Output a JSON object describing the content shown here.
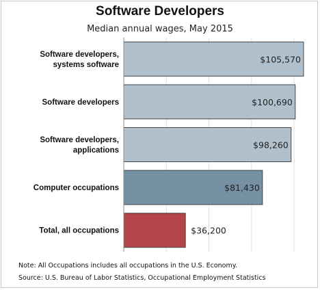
{
  "chart_data": {
    "type": "bar",
    "orientation": "horizontal",
    "title": "Software Developers",
    "subtitle": "Median annual wages, May 2015",
    "categories": [
      [
        "Software developers,",
        "systems software"
      ],
      [
        "Software developers"
      ],
      [
        "Software developers,",
        "applications"
      ],
      [
        "Computer occupations"
      ],
      [
        "Total, all occupations"
      ]
    ],
    "values": [
      105570,
      100690,
      98260,
      81430,
      36200
    ],
    "value_labels": [
      "$105,570",
      "$100,690",
      "$98,260",
      "$81,430",
      "$36,200"
    ],
    "bar_colors": [
      "#b0c1cd",
      "#b0c1cd",
      "#b0c1cd",
      "#7690a4",
      "#b5444a"
    ],
    "xlim": [
      0,
      110000
    ],
    "grid": true
  },
  "notes": {
    "line1": "Note: All Occupations includes all occupations in the U.S. Economy.",
    "line2": "Source: U.S. Bureau of Labor Statistics, Occupational Employment Statistics"
  }
}
